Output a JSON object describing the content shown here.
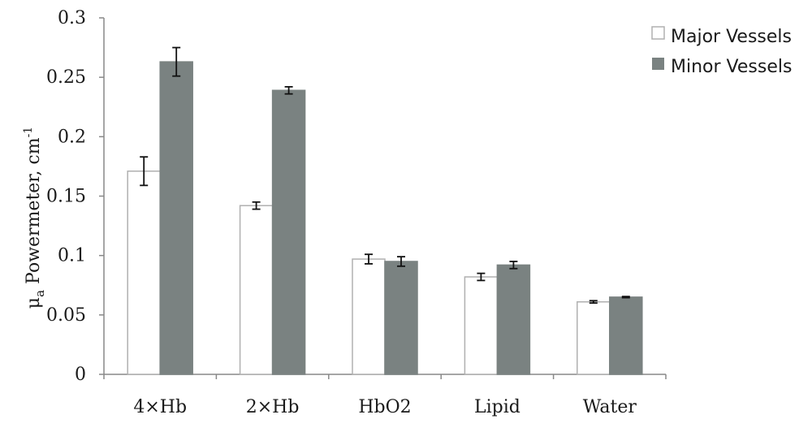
{
  "chart_data": {
    "type": "bar",
    "categories": [
      "4×Hb",
      "2×Hb",
      "HbO2",
      "Lipid",
      "Water"
    ],
    "series": [
      {
        "name": "Major Vessels",
        "values": [
          0.171,
          0.142,
          0.097,
          0.082,
          0.061
        ],
        "errors": [
          0.012,
          0.003,
          0.004,
          0.003,
          0.001
        ],
        "color": "#ffffff",
        "stroke": "#b0b0b0"
      },
      {
        "name": "Minor Vessels",
        "values": [
          0.263,
          0.239,
          0.095,
          0.092,
          0.065
        ],
        "errors": [
          0.012,
          0.003,
          0.004,
          0.003,
          0.0005
        ],
        "color": "#7a8281",
        "stroke": "#7a8281"
      }
    ],
    "ylabel": "μ_a Powermeter, cm-1",
    "ylabel_parts": {
      "mu": "μ",
      "sub": "a",
      "text": " Powermeter, cm",
      "sup": "-1"
    },
    "ylim": [
      0,
      0.3
    ],
    "yticks": [
      "0",
      "0.05",
      "0.1",
      "0.15",
      "0.2",
      "0.25",
      "0.3"
    ],
    "grid": false,
    "legend": "top-right"
  }
}
